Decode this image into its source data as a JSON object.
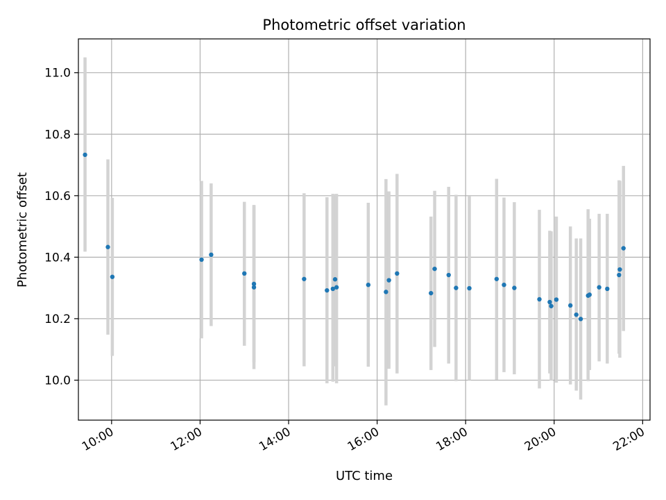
{
  "chart_data": {
    "type": "scatter",
    "title": "Photometric offset variation",
    "xlabel": "UTC time",
    "ylabel": "Photometric offset",
    "xlim": [
      "09:15",
      "22:10"
    ],
    "ylim": [
      9.87,
      11.11
    ],
    "grid": true,
    "x_ticks": [
      "10:00",
      "12:00",
      "14:00",
      "16:00",
      "18:00",
      "20:00",
      "22:00"
    ],
    "y_ticks": [
      "10.0",
      "10.2",
      "10.4",
      "10.6",
      "10.8",
      "11.0"
    ],
    "series": [
      {
        "marker_color": "#1f77b4",
        "errorbar_color": "#d3d3d3",
        "points": [
          {
            "x": "09:24",
            "y": 10.733,
            "ylow": 10.418,
            "yhigh": 11.05
          },
          {
            "x": "09:55",
            "y": 10.433,
            "ylow": 10.148,
            "yhigh": 10.718
          },
          {
            "x": "10:01",
            "y": 10.336,
            "ylow": 10.079,
            "yhigh": 10.593
          },
          {
            "x": "12:02",
            "y": 10.392,
            "ylow": 10.136,
            "yhigh": 10.648
          },
          {
            "x": "12:15",
            "y": 10.408,
            "ylow": 10.176,
            "yhigh": 10.64
          },
          {
            "x": "13:00",
            "y": 10.347,
            "ylow": 10.112,
            "yhigh": 10.58
          },
          {
            "x": "13:13",
            "y": 10.313,
            "ylow": 10.058,
            "yhigh": 10.57
          },
          {
            "x": "13:13",
            "y": 10.302,
            "ylow": 10.036,
            "yhigh": 10.568
          },
          {
            "x": "14:21",
            "y": 10.329,
            "ylow": 10.045,
            "yhigh": 10.608
          },
          {
            "x": "14:52",
            "y": 10.292,
            "ylow": 9.99,
            "yhigh": 10.595
          },
          {
            "x": "15:00",
            "y": 10.297,
            "ylow": 9.995,
            "yhigh": 10.606
          },
          {
            "x": "15:03",
            "y": 10.328,
            "ylow": 10.045,
            "yhigh": 10.605
          },
          {
            "x": "15:05",
            "y": 10.302,
            "ylow": 9.99,
            "yhigh": 10.606
          },
          {
            "x": "15:48",
            "y": 10.31,
            "ylow": 10.044,
            "yhigh": 10.577
          },
          {
            "x": "16:12",
            "y": 10.287,
            "ylow": 9.918,
            "yhigh": 10.654
          },
          {
            "x": "16:16",
            "y": 10.325,
            "ylow": 10.037,
            "yhigh": 10.614
          },
          {
            "x": "16:27",
            "y": 10.347,
            "ylow": 10.022,
            "yhigh": 10.671
          },
          {
            "x": "17:13",
            "y": 10.283,
            "ylow": 10.033,
            "yhigh": 10.532
          },
          {
            "x": "17:18",
            "y": 10.362,
            "ylow": 10.108,
            "yhigh": 10.616
          },
          {
            "x": "17:37",
            "y": 10.342,
            "ylow": 10.054,
            "yhigh": 10.629
          },
          {
            "x": "17:47",
            "y": 10.3,
            "ylow": 9.997,
            "yhigh": 10.603
          },
          {
            "x": "18:05",
            "y": 10.299,
            "ylow": 10.0,
            "yhigh": 10.598
          },
          {
            "x": "18:42",
            "y": 10.329,
            "ylow": 10.001,
            "yhigh": 10.655
          },
          {
            "x": "18:52",
            "y": 10.31,
            "ylow": 10.026,
            "yhigh": 10.594
          },
          {
            "x": "19:06",
            "y": 10.3,
            "ylow": 10.019,
            "yhigh": 10.579
          },
          {
            "x": "19:40",
            "y": 10.263,
            "ylow": 9.973,
            "yhigh": 10.554
          },
          {
            "x": "19:54",
            "y": 10.254,
            "ylow": 10.022,
            "yhigh": 10.486
          },
          {
            "x": "19:56",
            "y": 10.241,
            "ylow": 9.999,
            "yhigh": 10.484
          },
          {
            "x": "20:03",
            "y": 10.262,
            "ylow": 9.992,
            "yhigh": 10.532
          },
          {
            "x": "20:22",
            "y": 10.243,
            "ylow": 9.986,
            "yhigh": 10.5
          },
          {
            "x": "20:30",
            "y": 10.213,
            "ylow": 9.966,
            "yhigh": 10.461
          },
          {
            "x": "20:36",
            "y": 10.199,
            "ylow": 9.937,
            "yhigh": 10.461
          },
          {
            "x": "20:46",
            "y": 10.275,
            "ylow": 9.997,
            "yhigh": 10.556
          },
          {
            "x": "20:48",
            "y": 10.278,
            "ylow": 10.033,
            "yhigh": 10.525
          },
          {
            "x": "21:01",
            "y": 10.302,
            "ylow": 10.061,
            "yhigh": 10.541
          },
          {
            "x": "21:12",
            "y": 10.297,
            "ylow": 10.054,
            "yhigh": 10.541
          },
          {
            "x": "21:28",
            "y": 10.342,
            "ylow": 10.086,
            "yhigh": 10.65
          },
          {
            "x": "21:29",
            "y": 10.36,
            "ylow": 10.073,
            "yhigh": 10.648
          },
          {
            "x": "21:34",
            "y": 10.429,
            "ylow": 10.16,
            "yhigh": 10.697
          }
        ]
      }
    ]
  }
}
